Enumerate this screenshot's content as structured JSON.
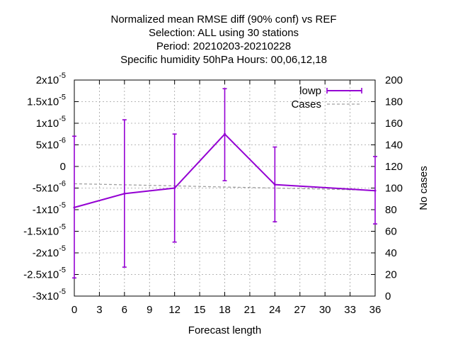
{
  "chart_data": {
    "type": "line",
    "title_lines": [
      "Normalized mean RMSE diff (90% conf) vs REF",
      "Selection: ALL using    30 stations",
      "Period: 20210203-20210228",
      "Specific humidity 50hPa   Hours:  00,06,12,18"
    ],
    "xlabel": "Forecast length",
    "y2label": "No cases",
    "xlim": [
      0,
      36
    ],
    "xticks": [
      "0",
      "3",
      "6",
      "9",
      "12",
      "15",
      "18",
      "21",
      "24",
      "27",
      "30",
      "33",
      "36"
    ],
    "ylim": [
      -3e-05,
      2e-05
    ],
    "yticks": [
      {
        "value": 2e-05,
        "mantissa": "2x10",
        "exp": "-5"
      },
      {
        "value": 1.5e-05,
        "mantissa": "1.5x10",
        "exp": "-5"
      },
      {
        "value": 1e-05,
        "mantissa": "1x10",
        "exp": "-5"
      },
      {
        "value": 5e-06,
        "mantissa": "5x10",
        "exp": "-6"
      },
      {
        "value": 0,
        "mantissa": "0",
        "exp": ""
      },
      {
        "value": -5e-06,
        "mantissa": "-5x10",
        "exp": "-6"
      },
      {
        "value": -1e-05,
        "mantissa": "-1x10",
        "exp": "-5"
      },
      {
        "value": -1.5e-05,
        "mantissa": "-1.5x10",
        "exp": "-5"
      },
      {
        "value": -2e-05,
        "mantissa": "-2x10",
        "exp": "-5"
      },
      {
        "value": -2.5e-05,
        "mantissa": "-2.5x10",
        "exp": "-5"
      },
      {
        "value": -3e-05,
        "mantissa": "-3x10",
        "exp": "-5"
      }
    ],
    "y2lim": [
      0,
      200
    ],
    "y2ticks": [
      "0",
      "20",
      "40",
      "60",
      "80",
      "100",
      "120",
      "140",
      "160",
      "180",
      "200"
    ],
    "grid": true,
    "legend_position": "top-right",
    "series": [
      {
        "name": "lowp",
        "color": "#9400d3",
        "x": [
          0,
          6,
          12,
          18,
          24,
          36
        ],
        "y": [
          -9.5e-06,
          -6.3e-06,
          -5e-06,
          7.5e-06,
          -4.2e-06,
          -5.6e-06
        ],
        "err_low": [
          -2.58e-05,
          -2.33e-05,
          -1.75e-05,
          -3.3e-06,
          -1.28e-05,
          -1.33e-05
        ],
        "err_high": [
          7e-06,
          1.08e-05,
          7.5e-06,
          1.8e-05,
          4.5e-06,
          2.3e-06
        ]
      },
      {
        "name": "Cases",
        "color": "#a0a0a0",
        "axis": "y2",
        "x": [
          0,
          6,
          12,
          18,
          24,
          36
        ],
        "y": [
          104,
          103,
          102,
          101,
          100,
          98
        ]
      }
    ]
  }
}
